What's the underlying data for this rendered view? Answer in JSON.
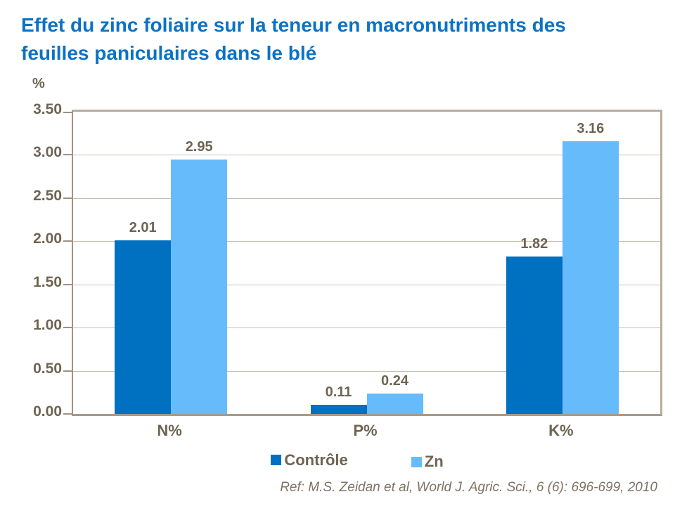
{
  "slide": {
    "title_lines": [
      "Effet du zinc foliaire sur la teneur en macronutriments des",
      "feuilles paniculaires dans le blé"
    ],
    "reference": "Ref: M.S. Zeidan et al, World J. Agric. Sci., 6 (6): 696-699, 2010"
  },
  "colors": {
    "title_text": "#0B72C6",
    "controle_bar": "#0070C0",
    "zn_bar": "#66BBFB",
    "axis_text": "#6F6352",
    "grid_line": "#C9BFB1",
    "axis_line": "#9E9284",
    "plot_border": "#B8AD9E",
    "reference_text": "#7E7263"
  },
  "chart_data": {
    "type": "bar",
    "title": "Effet du zinc foliaire sur la teneur en macronutriments des feuilles paniculaires dans le blé",
    "xlabel": "",
    "ylabel": "%",
    "categories": [
      "N%",
      "P%",
      "K%"
    ],
    "series": [
      {
        "name": "Contrôle",
        "color": "#0070C0",
        "values": [
          2.01,
          0.11,
          1.82
        ]
      },
      {
        "name": "Zn",
        "color": "#66BBFB",
        "values": [
          2.95,
          0.24,
          3.16
        ]
      }
    ],
    "ylim": [
      0,
      3.5
    ],
    "ytick_step": 0.5,
    "ytick_labels": [
      "0.00",
      "0.50",
      "1.00",
      "1.50",
      "2.00",
      "2.50",
      "3.00",
      "3.50"
    ],
    "grid": true,
    "data_labels": true,
    "legend_position": "bottom"
  }
}
